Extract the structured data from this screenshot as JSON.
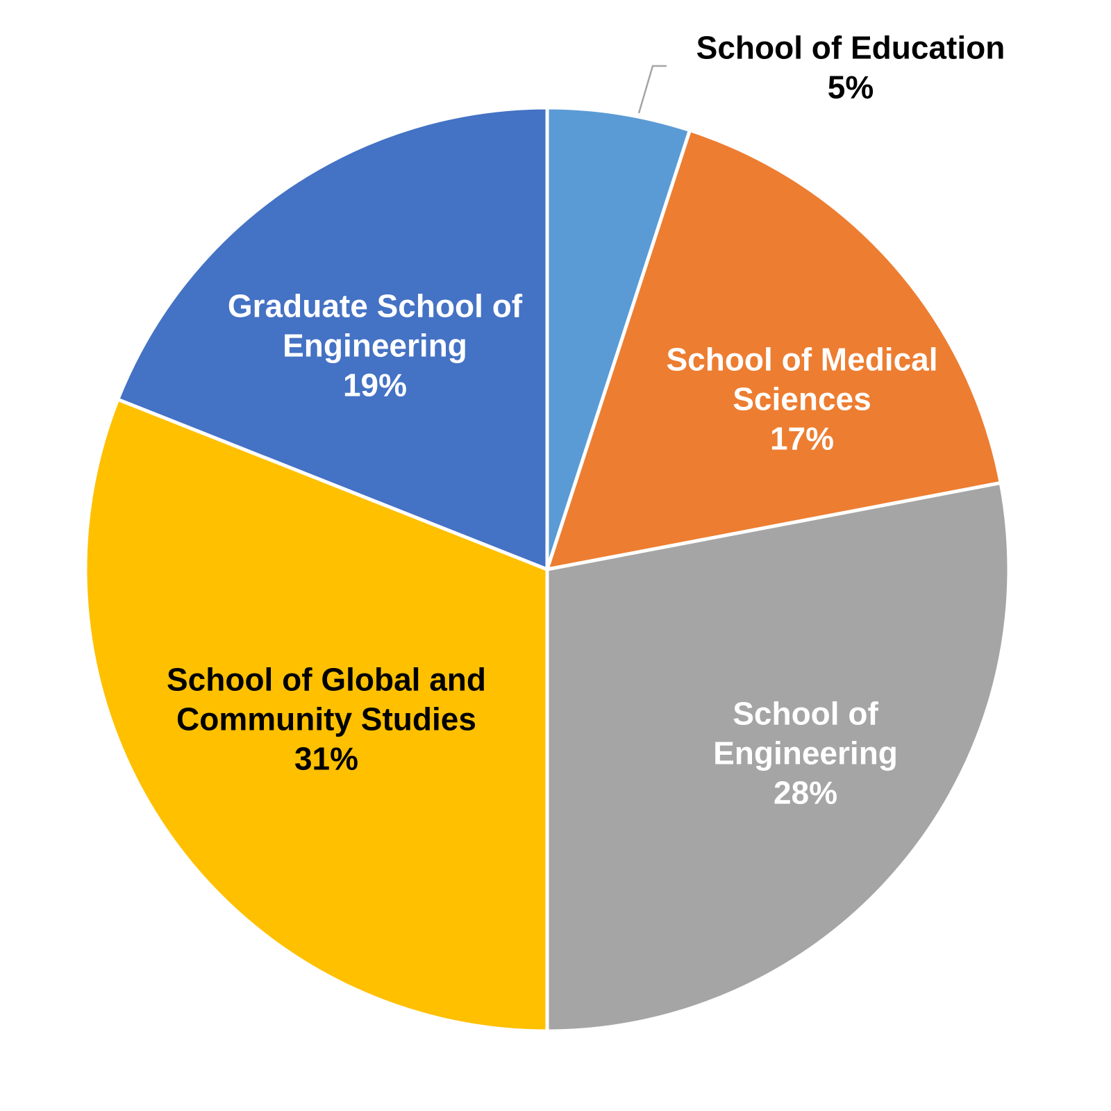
{
  "chart_data": {
    "type": "pie",
    "title": "",
    "start_angle_deg": 0,
    "direction": "clockwise",
    "slices": [
      {
        "label_lines": [
          "School of Education"
        ],
        "value": 5,
        "percent_label": "5%",
        "color": "#5B9BD5",
        "label_color": "#000000",
        "label_placement": "outside"
      },
      {
        "label_lines": [
          "School of Medical",
          "Sciences"
        ],
        "value": 17,
        "percent_label": "17%",
        "color": "#ED7D31",
        "label_color": "#FFFFFF",
        "label_placement": "inside"
      },
      {
        "label_lines": [
          "School of",
          "Engineering"
        ],
        "value": 28,
        "percent_label": "28%",
        "color": "#A5A5A5",
        "label_color": "#FFFFFF",
        "label_placement": "inside"
      },
      {
        "label_lines": [
          "School of Global and",
          "Community Studies"
        ],
        "value": 31,
        "percent_label": "31%",
        "color": "#FFC000",
        "label_color": "#000000",
        "label_placement": "inside"
      },
      {
        "label_lines": [
          "Graduate School of",
          "Engineering"
        ],
        "value": 19,
        "percent_label": "19%",
        "color": "#4472C4",
        "label_color": "#FFFFFF",
        "label_placement": "inside"
      }
    ],
    "slice_border_color": "#FFFFFF",
    "leader_line_color": "#A5A5A5"
  }
}
